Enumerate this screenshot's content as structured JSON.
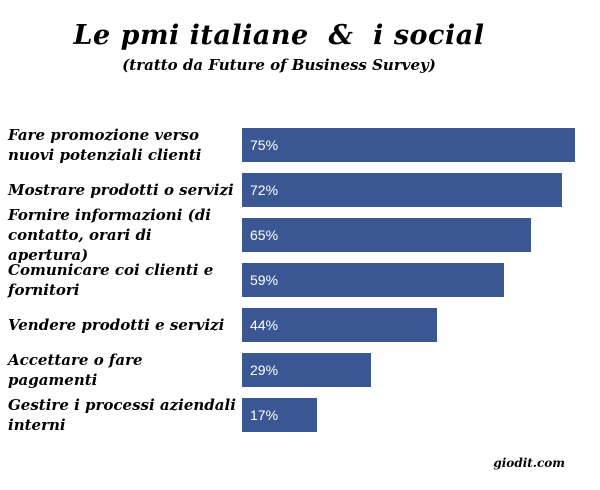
{
  "header": {
    "title": "Le pmi italiane  &  i social",
    "subtitle": "(tratto da Future of Business Survey)"
  },
  "footer": {
    "credit": "giodit.com"
  },
  "colors": {
    "bar": "#3A5794",
    "bar_label": "#FFFFFF",
    "text": "#000000",
    "background": "#FFFFFF"
  },
  "chart_data": {
    "type": "bar",
    "orientation": "horizontal",
    "title": "Le pmi italiane & i social",
    "subtitle": "(tratto da Future of Business Survey)",
    "categories": [
      "Fare promozione verso nuovi potenziali clienti",
      "Mostrare prodotti o servizi",
      "Fornire informazioni (di contatto, orari di apertura)",
      "Comunicare coi clienti e fornitori",
      "Vendere prodotti e servizi",
      "Accettare o fare pagamenti",
      "Gestire i processi aziendali interni"
    ],
    "values": [
      75,
      72,
      65,
      59,
      44,
      29,
      17
    ],
    "value_labels": [
      "75%",
      "72%",
      "65%",
      "59%",
      "44%",
      "29%",
      "17%"
    ],
    "xlabel": "",
    "ylabel": "",
    "xlim": [
      0,
      100
    ],
    "grid": false,
    "legend": false,
    "bar_color": "#3A5794",
    "source_credit": "giodit.com"
  }
}
